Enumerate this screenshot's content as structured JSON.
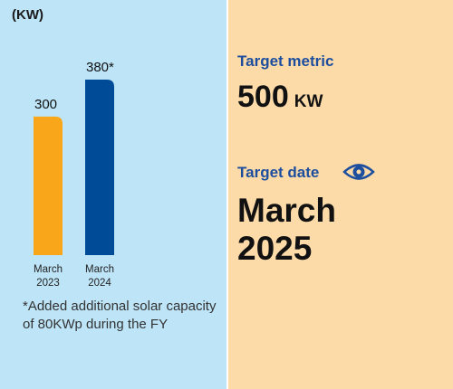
{
  "left_panel": {
    "unit_label": "(KW)",
    "footnote": "*Added additional solar capacity of 80KWp during the FY"
  },
  "chart_data": {
    "type": "bar",
    "categories": [
      [
        "March",
        "2023"
      ],
      [
        "March",
        "2024"
      ]
    ],
    "values": [
      300,
      380
    ],
    "value_labels": [
      "300",
      "380*"
    ],
    "ylim": [
      0,
      380
    ],
    "colors": [
      "#F9A61A",
      "#004B97"
    ],
    "grid": false,
    "legend": "none"
  },
  "right_panel": {
    "metric_title": "Target metric",
    "metric_value": "500",
    "metric_unit": "KW",
    "date_title": "Target date",
    "date_line1": "March",
    "date_line2": "2025",
    "icon": "eye-icon",
    "accent_color": "#1D4E9E"
  },
  "colors": {
    "left_bg": "#BDE4F7",
    "right_bg": "#FCDBA9"
  }
}
